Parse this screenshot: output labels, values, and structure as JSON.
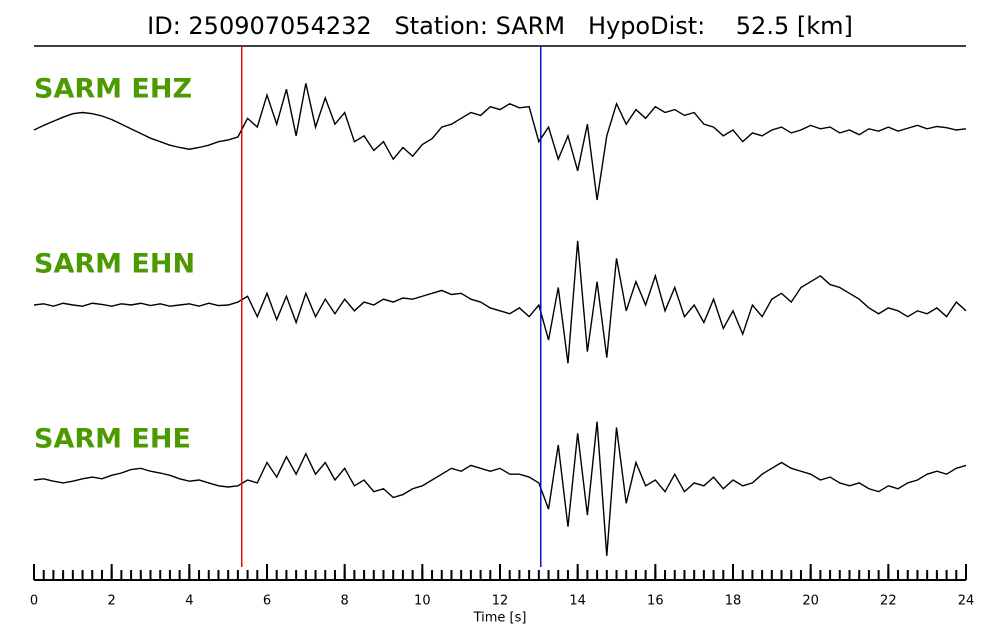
{
  "chart_data": {
    "type": "line",
    "title": "ID: 250907054232   Station: SARM   HypoDist:    52.5 [km]",
    "xlabel": "Time [s]",
    "xlim": [
      0,
      24
    ],
    "xticks": [
      0,
      2,
      4,
      6,
      8,
      10,
      12,
      14,
      16,
      18,
      20,
      22,
      24
    ],
    "xminorticks": [
      0,
      0.25,
      0.5,
      0.75,
      1,
      1.25,
      1.5,
      1.75,
      2,
      2.25,
      2.5,
      2.75,
      3,
      3.25,
      3.5,
      3.75,
      4,
      4.25,
      4.5,
      4.75,
      5,
      5.25,
      5.5,
      5.75,
      6,
      6.25,
      6.5,
      6.75,
      7,
      7.25,
      7.5,
      7.75,
      8,
      8.25,
      8.5,
      8.75,
      9,
      9.25,
      9.5,
      9.75,
      10,
      10.25,
      10.5,
      10.75,
      11,
      11.25,
      11.5,
      11.75,
      12,
      12.25,
      12.5,
      12.75,
      13,
      13.25,
      13.5,
      13.75,
      14,
      14.25,
      14.5,
      14.75,
      15,
      15.25,
      15.5,
      15.75,
      16,
      16.25,
      16.5,
      16.75,
      17,
      17.25,
      17.5,
      17.75,
      18,
      18.25,
      18.5,
      18.75,
      19,
      19.25,
      19.5,
      19.75,
      20,
      20.25,
      20.5,
      20.75,
      21,
      21.25,
      21.5,
      21.75,
      22,
      22.25,
      22.5,
      22.75,
      23,
      23.25,
      23.5,
      23.75,
      24
    ],
    "ylim": [
      -1.2,
      1.2
    ],
    "label_color": "#4d9900",
    "x": [
      0,
      0.25,
      0.5,
      0.75,
      1,
      1.25,
      1.5,
      1.75,
      2,
      2.25,
      2.5,
      2.75,
      3,
      3.25,
      3.5,
      3.75,
      4,
      4.25,
      4.5,
      4.75,
      5,
      5.25,
      5.5,
      5.75,
      6,
      6.25,
      6.5,
      6.75,
      7,
      7.25,
      7.5,
      7.75,
      8,
      8.25,
      8.5,
      8.75,
      9,
      9.25,
      9.5,
      9.75,
      10,
      10.25,
      10.5,
      10.75,
      11,
      11.25,
      11.5,
      11.75,
      12,
      12.25,
      12.5,
      12.75,
      13,
      13.25,
      13.5,
      13.75,
      14,
      14.25,
      14.5,
      14.75,
      15,
      15.25,
      15.5,
      15.75,
      16,
      16.25,
      16.5,
      16.75,
      17,
      17.25,
      17.5,
      17.75,
      18,
      18.25,
      18.5,
      18.75,
      19,
      19.25,
      19.5,
      19.75,
      20,
      20.25,
      20.5,
      20.75,
      21,
      21.25,
      21.5,
      21.75,
      22,
      22.25,
      22.5,
      22.75,
      23,
      23.25,
      23.5,
      23.75,
      24
    ],
    "markers": [
      {
        "x": 5.35,
        "color": "#e00000"
      },
      {
        "x": 13.05,
        "color": "#0000cc"
      }
    ],
    "series": [
      {
        "name": "SARM EHZ",
        "color": "#000000",
        "values": [
          0,
          0.08,
          0.15,
          0.22,
          0.28,
          0.3,
          0.28,
          0.24,
          0.18,
          0.1,
          0.02,
          -0.06,
          -0.14,
          -0.2,
          -0.26,
          -0.3,
          -0.33,
          -0.3,
          -0.26,
          -0.2,
          -0.17,
          -0.12,
          0.2,
          0.05,
          0.6,
          0.1,
          0.7,
          -0.1,
          0.8,
          0.05,
          0.55,
          0.1,
          0.3,
          -0.2,
          -0.1,
          -0.35,
          -0.2,
          -0.5,
          -0.3,
          -0.45,
          -0.25,
          -0.15,
          0.05,
          0.1,
          0.2,
          0.3,
          0.25,
          0.4,
          0.35,
          0.45,
          0.38,
          0.4,
          -0.2,
          0.05,
          -0.5,
          -0.1,
          -0.7,
          0.1,
          -1.2,
          -0.1,
          0.45,
          0.1,
          0.35,
          0.2,
          0.4,
          0.3,
          0.35,
          0.25,
          0.3,
          0.1,
          0.05,
          -0.1,
          0.0,
          -0.2,
          -0.05,
          -0.1,
          0.0,
          0.05,
          -0.05,
          0.0,
          0.08,
          0.02,
          0.05,
          -0.05,
          0.0,
          -0.08,
          0.02,
          -0.02,
          0.05,
          -0.02,
          0.03,
          0.08,
          0.02,
          0.06,
          0.04,
          0.0,
          0.02
        ]
      },
      {
        "name": "SARM EHN",
        "color": "#000000",
        "values": [
          0,
          0.02,
          -0.02,
          0.03,
          0,
          -0.02,
          0.03,
          0.01,
          -0.02,
          0.02,
          0,
          0.03,
          -0.01,
          0.02,
          -0.02,
          0,
          0.02,
          -0.02,
          0.03,
          -0.01,
          0,
          0.05,
          0.15,
          -0.2,
          0.2,
          -0.25,
          0.15,
          -0.3,
          0.2,
          -0.2,
          0.1,
          -0.15,
          0.1,
          -0.1,
          0.05,
          0.0,
          0.1,
          0.05,
          0.12,
          0.1,
          0.15,
          0.2,
          0.25,
          0.18,
          0.2,
          0.1,
          0.05,
          -0.05,
          -0.1,
          -0.15,
          -0.05,
          -0.2,
          0.0,
          -0.6,
          0.3,
          -1.0,
          1.1,
          -0.8,
          0.4,
          -0.9,
          0.8,
          -0.1,
          0.4,
          0.0,
          0.5,
          -0.1,
          0.3,
          -0.2,
          0.0,
          -0.3,
          0.1,
          -0.4,
          -0.1,
          -0.5,
          0.0,
          -0.2,
          0.1,
          0.2,
          0.05,
          0.3,
          0.4,
          0.5,
          0.35,
          0.3,
          0.2,
          0.1,
          -0.05,
          -0.15,
          -0.05,
          -0.1,
          -0.2,
          -0.1,
          -0.15,
          -0.05,
          -0.2,
          0.05,
          -0.1
        ]
      },
      {
        "name": "SARM EHE",
        "color": "#000000",
        "values": [
          0,
          0.02,
          -0.02,
          -0.05,
          -0.02,
          0.02,
          0.05,
          0.02,
          0.08,
          0.12,
          0.18,
          0.2,
          0.15,
          0.12,
          0.08,
          0.02,
          -0.02,
          0,
          -0.05,
          -0.1,
          -0.12,
          -0.1,
          0,
          -0.05,
          0.3,
          0.05,
          0.4,
          0.1,
          0.45,
          0.1,
          0.3,
          0.0,
          0.2,
          -0.1,
          0.0,
          -0.2,
          -0.15,
          -0.3,
          -0.25,
          -0.15,
          -0.1,
          0.0,
          0.1,
          0.2,
          0.15,
          0.25,
          0.2,
          0.15,
          0.2,
          0.1,
          0.1,
          0.05,
          -0.05,
          -0.5,
          0.6,
          -0.8,
          0.8,
          -0.6,
          1.0,
          -1.3,
          0.9,
          -0.4,
          0.3,
          -0.1,
          0.0,
          -0.2,
          0.1,
          -0.2,
          -0.05,
          -0.1,
          0.05,
          -0.15,
          0.0,
          -0.1,
          -0.05,
          0.1,
          0.2,
          0.3,
          0.2,
          0.15,
          0.1,
          0.0,
          0.05,
          -0.05,
          -0.1,
          -0.05,
          -0.15,
          -0.2,
          -0.1,
          -0.15,
          -0.05,
          0.0,
          0.1,
          0.15,
          0.1,
          0.2,
          0.25
        ]
      }
    ]
  }
}
